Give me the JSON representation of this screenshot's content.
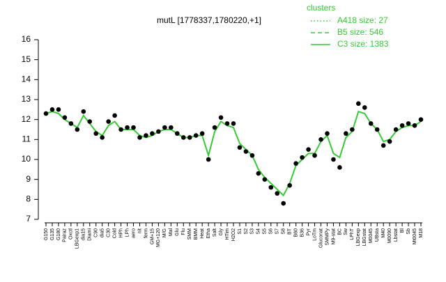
{
  "chart_data": {
    "type": "line",
    "title": "mutL [1778337,1780220,+1]",
    "categories": [
      "G150",
      "G135",
      "G180",
      "Pairaz",
      "Oxctl",
      "LBGexp1",
      "dia15",
      "Diami",
      "C90",
      "dia5",
      "C30",
      "Cold",
      "HPh",
      "LPh",
      "aero",
      "nit",
      "ferm",
      "GM+15",
      "MG+120",
      "M/G",
      "Mal",
      "Glu",
      "Flu",
      "SMM",
      "BMM",
      "Heat",
      "Etha",
      "Salt",
      "Gly",
      "HTim",
      "H2O2",
      "S1",
      "S2",
      "S3",
      "S4",
      "S5",
      "S6",
      "S7",
      "S8",
      "BT",
      "B60",
      "B36",
      "Pyr",
      "LoTm",
      "Gluconat",
      "SMMPy",
      "M9-stat",
      "BC",
      "Sw",
      "LPhT",
      "LBGexp",
      "LBGstat",
      "M0045",
      "UBsta",
      "M40",
      "M0090",
      "Lbstat",
      "Bl",
      "Sb",
      "Mt0045",
      "M18"
    ],
    "values": [
      12.3,
      12.5,
      12.5,
      12.1,
      11.8,
      11.5,
      12.4,
      11.9,
      11.3,
      11.1,
      11.9,
      12.2,
      11.5,
      11.6,
      11.6,
      11.1,
      11.2,
      11.3,
      11.4,
      11.6,
      11.6,
      11.3,
      11.1,
      11.1,
      11.2,
      11.3,
      10.0,
      11.6,
      12.1,
      11.8,
      11.8,
      10.6,
      10.4,
      10.2,
      9.3,
      9.0,
      8.6,
      8.3,
      7.8,
      8.7,
      9.8,
      10.1,
      10.5,
      10.2,
      11.0,
      11.3,
      10.0,
      9.6,
      11.3,
      11.5,
      12.8,
      12.6,
      11.8,
      11.5,
      10.7,
      10.9,
      11.5,
      11.7,
      11.8,
      11.7,
      12.0
    ],
    "line_values": [
      12.3,
      12.4,
      12.3,
      12.0,
      11.8,
      11.6,
      12.2,
      11.8,
      11.4,
      11.2,
      11.7,
      11.9,
      11.5,
      11.5,
      11.5,
      11.2,
      11.1,
      11.2,
      11.4,
      11.5,
      11.5,
      11.3,
      11.1,
      11.1,
      11.2,
      11.2,
      10.2,
      11.4,
      11.9,
      11.7,
      11.6,
      10.8,
      10.5,
      10.2,
      9.5,
      9.1,
      8.8,
      8.5,
      8.2,
      8.8,
      9.7,
      10.0,
      10.3,
      10.3,
      10.9,
      11.2,
      10.3,
      10.1,
      11.1,
      11.4,
      12.4,
      12.3,
      11.8,
      11.5,
      10.9,
      11.0,
      11.4,
      11.6,
      11.7,
      11.7,
      11.9
    ],
    "line_color": "#33cc33",
    "point_color": "#000000",
    "ylim": [
      7,
      16
    ],
    "yticks": [
      7,
      8,
      9,
      10,
      11,
      12,
      13,
      14,
      15,
      16
    ],
    "legend": {
      "title": "clusters",
      "entries": [
        {
          "name": "A418 size: 27",
          "dash": "dotted"
        },
        {
          "name": "B5 size: 546",
          "dash": "dashed"
        },
        {
          "name": "C3 size: 1383",
          "dash": "solid"
        }
      ]
    }
  }
}
